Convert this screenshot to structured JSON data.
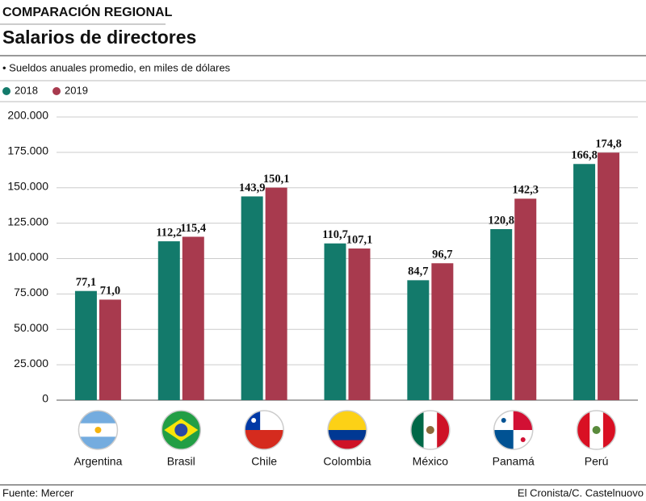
{
  "chart_data": {
    "type": "bar",
    "kicker": "COMPARACIÓN REGIONAL",
    "title": "Salarios de directores",
    "subtitle": "• Sueldos anuales promedio, en miles de dólares",
    "categories": [
      "Argentina",
      "Brasil",
      "Chile",
      "Colombia",
      "México",
      "Panamá",
      "Perú"
    ],
    "series": [
      {
        "name": "2018",
        "color": "#137a6b",
        "values": [
          77100,
          112200,
          143900,
          110700,
          84700,
          120800,
          166800
        ],
        "value_labels": [
          "77,1",
          "112,2",
          "143,9",
          "110,7",
          "84,7",
          "120,8",
          "166,8"
        ]
      },
      {
        "name": "2019",
        "color": "#a83a4e",
        "values": [
          71000,
          115400,
          150100,
          107100,
          96700,
          142300,
          174800
        ],
        "value_labels": [
          "71,0",
          "115,4",
          "150,1",
          "107,1",
          "96,7",
          "142,3",
          "174,8"
        ]
      }
    ],
    "ylim": [
      0,
      200000
    ],
    "yticks": [
      0,
      {
        "value": 25000,
        "label": "25.000"
      },
      {
        "value": 50000,
        "label": "50.000"
      },
      {
        "value": 75000,
        "label": "75.000"
      },
      {
        "value": 100000,
        "label": "100.000"
      },
      {
        "value": 125000,
        "label": "125.000"
      },
      {
        "value": 150000,
        "label": "150.000"
      },
      {
        "value": 175000,
        "label": "175.000"
      },
      {
        "value": 200000,
        "label": "200.000"
      }
    ],
    "grid": true,
    "source": "Fuente: Mercer",
    "credit": "El Cronista/C. Castelnuovo"
  }
}
